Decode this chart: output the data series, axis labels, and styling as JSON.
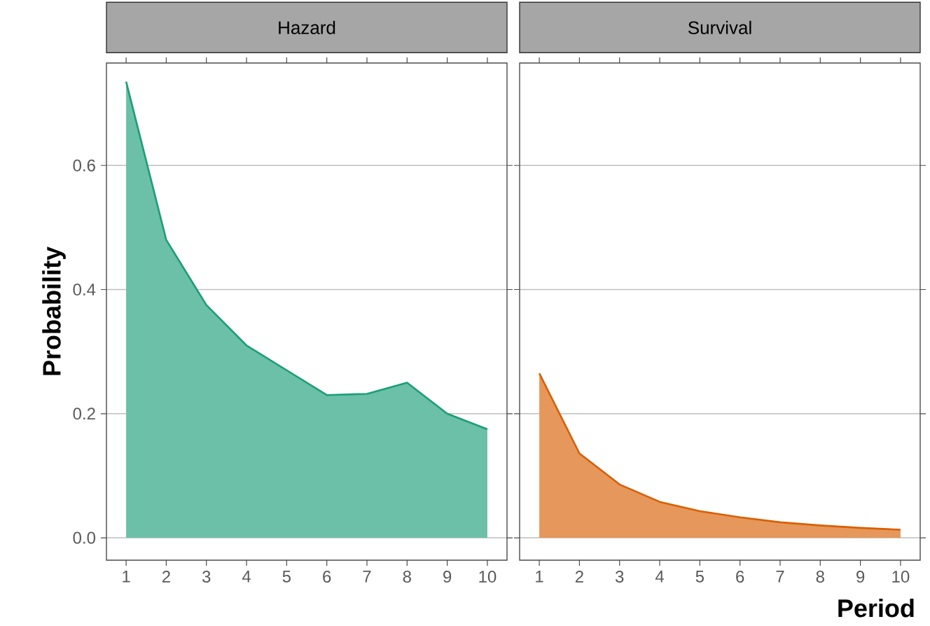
{
  "chart_data": [
    {
      "type": "area",
      "title": "Hazard",
      "ylabel": "Probability",
      "x": [
        1,
        2,
        3,
        4,
        5,
        6,
        7,
        8,
        9,
        10
      ],
      "series": [
        {
          "color": "#1b9e77",
          "values": [
            0.735,
            0.48,
            0.375,
            0.31,
            0.27,
            0.23,
            0.232,
            0.25,
            0.2,
            0.175
          ]
        }
      ],
      "xlim": [
        0.51,
        10.49
      ],
      "ylim": [
        -0.036,
        0.765
      ],
      "xticks": [
        1,
        2,
        3,
        4,
        5,
        6,
        7,
        8,
        9,
        10
      ],
      "yticks": [
        {
          "value": 0,
          "label": "0.0"
        },
        {
          "value": 0.2,
          "label": "0.2"
        },
        {
          "value": 0.4,
          "label": "0.4"
        },
        {
          "value": 0.6,
          "label": "0.6"
        }
      ],
      "grid": "y"
    },
    {
      "type": "area",
      "title": "Survival",
      "xlabel": "Period",
      "x": [
        1,
        2,
        3,
        4,
        5,
        6,
        7,
        8,
        9,
        10
      ],
      "series": [
        {
          "color": "#d95f02",
          "values": [
            0.265,
            0.136,
            0.086,
            0.058,
            0.043,
            0.033,
            0.025,
            0.02,
            0.016,
            0.013
          ]
        }
      ],
      "xlim": [
        0.51,
        10.49
      ],
      "ylim": [
        -0.036,
        0.765
      ],
      "xticks": [
        1,
        2,
        3,
        4,
        5,
        6,
        7,
        8,
        9,
        10
      ],
      "yticks": [
        {
          "value": 0,
          "label": null
        },
        {
          "value": 0.2,
          "label": null
        },
        {
          "value": 0.4,
          "label": null
        },
        {
          "value": 0.6,
          "label": null
        }
      ],
      "grid": "y",
      "tick_labels": "x"
    }
  ]
}
